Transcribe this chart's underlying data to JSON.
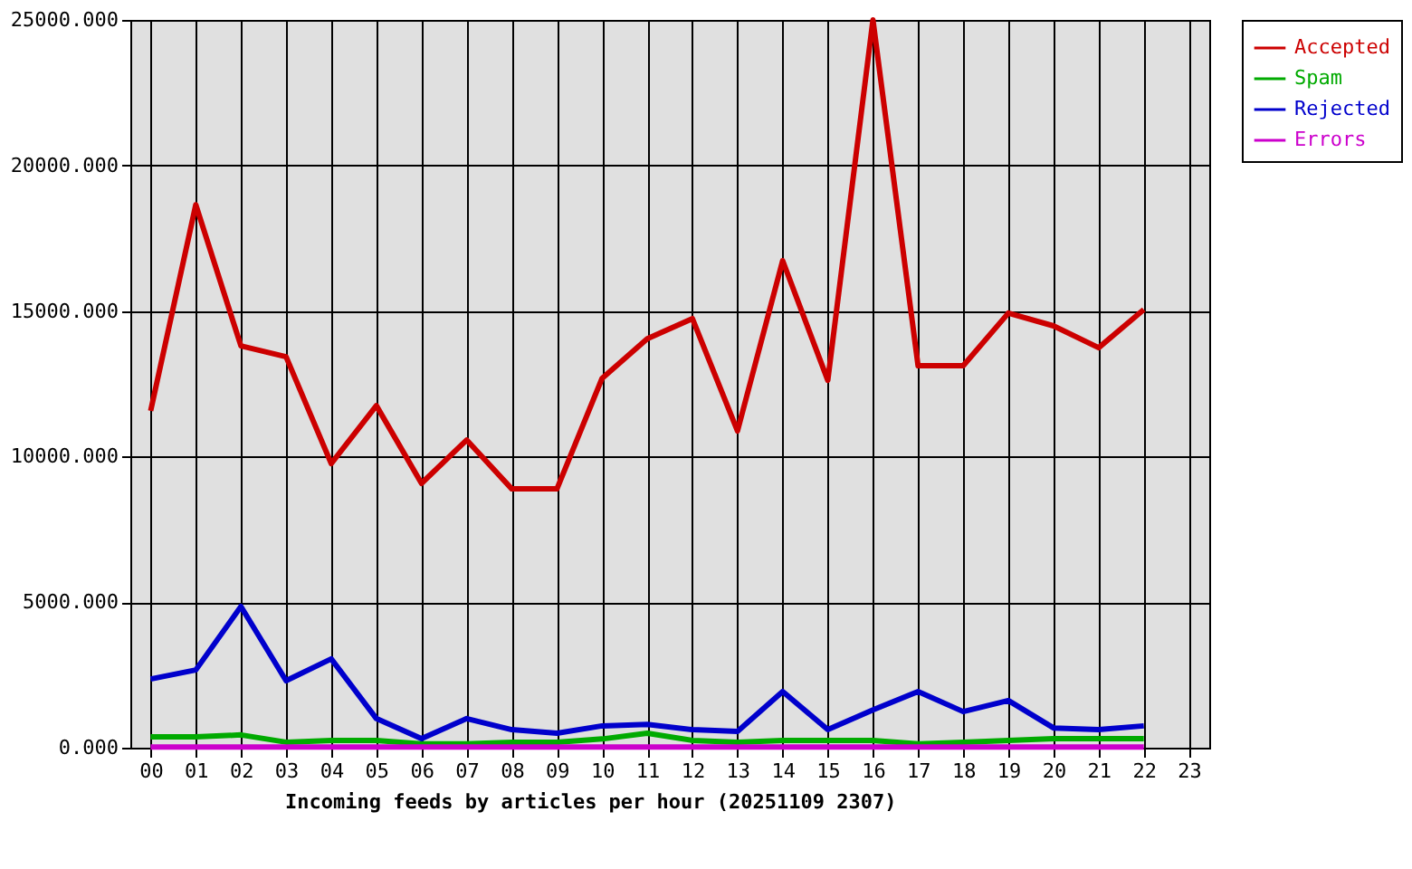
{
  "chart_data": {
    "type": "line",
    "xlabel": "Incoming feeds by articles per hour (20251109 2307)",
    "categories": [
      "00",
      "01",
      "02",
      "03",
      "04",
      "05",
      "06",
      "07",
      "08",
      "09",
      "10",
      "11",
      "12",
      "13",
      "14",
      "15",
      "16",
      "17",
      "18",
      "19",
      "20",
      "21",
      "22",
      "23"
    ],
    "series": [
      {
        "name": "Accepted",
        "color": "#cc0000",
        "values": [
          11570,
          18650,
          13800,
          13430,
          9760,
          11750,
          9080,
          10570,
          8890,
          8890,
          12690,
          14050,
          14740,
          10880,
          16730,
          12620,
          25000,
          13120,
          13120,
          14930,
          14490,
          13740,
          15050,
          null
        ]
      },
      {
        "name": "Spam",
        "color": "#00aa00",
        "values": [
          370,
          370,
          440,
          190,
          250,
          250,
          130,
          130,
          190,
          190,
          300,
          500,
          250,
          190,
          250,
          250,
          250,
          130,
          190,
          250,
          310,
          310,
          310,
          null
        ]
      },
      {
        "name": "Rejected",
        "color": "#0000cc",
        "values": [
          2360,
          2670,
          4850,
          2300,
          3050,
          1000,
          310,
          1000,
          620,
          500,
          750,
          800,
          620,
          560,
          1930,
          620,
          1300,
          1930,
          1240,
          1620,
          680,
          620,
          750,
          null
        ]
      },
      {
        "name": "Errors",
        "color": "#cc00cc",
        "values": [
          20,
          20,
          20,
          20,
          20,
          20,
          20,
          20,
          20,
          20,
          20,
          20,
          20,
          20,
          20,
          20,
          20,
          20,
          20,
          20,
          20,
          20,
          20,
          null
        ]
      }
    ],
    "ylim": [
      0,
      25000
    ],
    "yticks": [
      {
        "value": 0,
        "label": "0.000"
      },
      {
        "value": 5000,
        "label": "5000.000"
      },
      {
        "value": 10000,
        "label": "10000.000"
      },
      {
        "value": 15000,
        "label": "15000.000"
      },
      {
        "value": 20000,
        "label": "20000.000"
      },
      {
        "value": 25000,
        "label": "25000.000"
      }
    ],
    "grid": true,
    "legend": "top right",
    "marker": "none",
    "line_style": "solid"
  }
}
